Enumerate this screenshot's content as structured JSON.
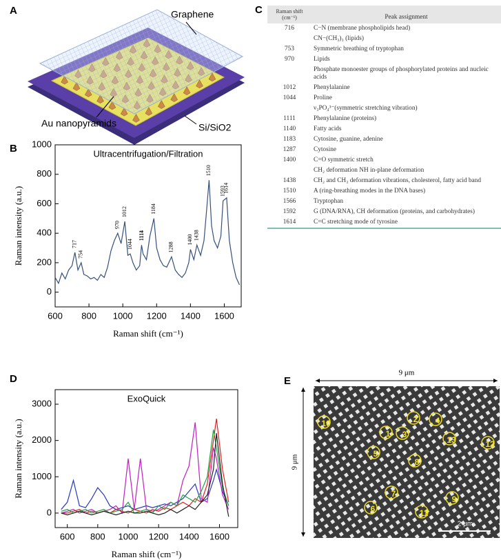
{
  "panel_a": {
    "label": "A",
    "graphene": "Graphene",
    "nanopyramids": "Au nanopyramids",
    "substrate": "Si/SiO2"
  },
  "chart_data": [
    {
      "type": "line",
      "label": "B",
      "title": "Ultracentrifugation/Filtration",
      "xlabel": "Raman shift (cm⁻¹)",
      "ylabel": "Raman intensity (a.u.)",
      "x": [
        600,
        620,
        640,
        660,
        680,
        700,
        717,
        735,
        754,
        770,
        790,
        810,
        830,
        850,
        870,
        890,
        910,
        930,
        950,
        970,
        990,
        1012,
        1030,
        1044,
        1060,
        1080,
        1100,
        1111,
        1120,
        1140,
        1160,
        1184,
        1200,
        1220,
        1240,
        1260,
        1288,
        1310,
        1330,
        1350,
        1370,
        1390,
        1400,
        1420,
        1438,
        1460,
        1480,
        1495,
        1510,
        1525,
        1540,
        1560,
        1580,
        1593,
        1614,
        1630,
        1650,
        1670,
        1690
      ],
      "series": [
        {
          "color": "#34507a",
          "values": [
            100,
            60,
            130,
            90,
            150,
            180,
            270,
            150,
            200,
            120,
            110,
            90,
            100,
            80,
            120,
            100,
            170,
            280,
            350,
            400,
            330,
            480,
            250,
            260,
            200,
            150,
            180,
            320,
            260,
            220,
            380,
            500,
            300,
            220,
            180,
            170,
            240,
            150,
            120,
            100,
            130,
            200,
            290,
            220,
            320,
            250,
            350,
            550,
            760,
            450,
            350,
            300,
            380,
            620,
            640,
            350,
            200,
            100,
            50
          ]
        }
      ],
      "xlim": [
        600,
        1700
      ],
      "ylim": [
        -100,
        1000
      ],
      "xticks": [
        600,
        800,
        1000,
        1200,
        1400,
        1600
      ],
      "yticks": [
        0,
        200,
        400,
        600,
        800,
        1000
      ],
      "peak_labels": [
        717,
        754,
        970,
        1012,
        1044,
        1111,
        1114,
        1184,
        1288,
        1400,
        1438,
        1510,
        1593,
        1614
      ]
    },
    {
      "type": "line",
      "label": "D",
      "title": "ExoQuick",
      "xlabel": "Raman shift (cm⁻¹)",
      "ylabel": "Raman intensity (a.u.)",
      "x": [
        560,
        600,
        640,
        680,
        720,
        760,
        800,
        840,
        880,
        920,
        960,
        1000,
        1040,
        1080,
        1120,
        1160,
        1200,
        1240,
        1280,
        1320,
        1360,
        1400,
        1440,
        1480,
        1520,
        1560,
        1580,
        1620,
        1660
      ],
      "series": [
        {
          "color": "#2438c0",
          "values": [
            100,
            300,
            900,
            200,
            150,
            400,
            700,
            500,
            200,
            100,
            150,
            200,
            100,
            150,
            200,
            150,
            200,
            250,
            200,
            300,
            400,
            600,
            800,
            300,
            400,
            900,
            1200,
            600,
            200
          ]
        },
        {
          "color": "#c020c0",
          "values": [
            0,
            50,
            100,
            0,
            50,
            100,
            0,
            50,
            100,
            200,
            0,
            1500,
            100,
            1500,
            100,
            50,
            100,
            200,
            300,
            200,
            900,
            1300,
            2500,
            400,
            300,
            1800,
            1500,
            500,
            100
          ]
        },
        {
          "color": "#e02020",
          "values": [
            0,
            0,
            50,
            100,
            0,
            50,
            0,
            50,
            0,
            100,
            50,
            0,
            100,
            50,
            0,
            100,
            50,
            150,
            100,
            200,
            300,
            200,
            400,
            300,
            800,
            2000,
            2600,
            1200,
            300
          ]
        },
        {
          "color": "#20a040",
          "values": [
            50,
            100,
            0,
            50,
            100,
            0,
            50,
            100,
            0,
            50,
            100,
            300,
            0,
            50,
            100,
            0,
            200,
            100,
            300,
            200,
            500,
            400,
            300,
            600,
            1000,
            2300,
            1800,
            700,
            200
          ]
        },
        {
          "color": "#202020",
          "values": [
            0,
            -50,
            0,
            50,
            0,
            -50,
            0,
            50,
            0,
            -50,
            0,
            50,
            0,
            0,
            50,
            0,
            -50,
            0,
            100,
            0,
            100,
            200,
            100,
            300,
            500,
            1200,
            2200,
            800,
            -100
          ]
        }
      ],
      "xlim": [
        520,
        1720
      ],
      "ylim": [
        -400,
        3400
      ],
      "xticks": [
        600,
        800,
        1000,
        1200,
        1400,
        1600
      ],
      "yticks": [
        0,
        1000,
        2000,
        3000
      ]
    }
  ],
  "table": {
    "label": "C",
    "header": [
      "Raman shift (cm⁻¹)",
      "Peak assignment"
    ],
    "rows": [
      {
        "shift": 716,
        "assignment": "C−N (membrane phospholipids head)"
      },
      {
        "assignment": "CN−(CH₃)₃ (lipids)"
      },
      {
        "shift": 753,
        "assignment": "Symmetric breathing of tryptophan"
      },
      {
        "shift": 970,
        "assignment": "Lipids"
      },
      {
        "assignment": "Phosphate monoester groups of phosphorylated proteins and nucleic acids"
      },
      {
        "shift": 1012,
        "assignment": "Phenylalanine"
      },
      {
        "shift": 1044,
        "assignment": "Proline"
      },
      {
        "assignment": "ν₃PO₄³⁻(symmetric stretching vibration)"
      },
      {
        "shift": 1111,
        "assignment": "Phenylalanine (proteins)"
      },
      {
        "shift": 1140,
        "assignment": "Fatty acids"
      },
      {
        "shift": 1183,
        "assignment": "Cytosine, guanine, adenine"
      },
      {
        "shift": 1287,
        "assignment": "Cytosine"
      },
      {
        "shift": 1400,
        "assignment": "C=O symmetric stretch"
      },
      {
        "assignment": "CH₂ deformation NH in-plane deformation"
      },
      {
        "shift": 1438,
        "assignment": "CH₂ and CH₃ deformation vibrations, cholesterol, fatty acid band"
      },
      {
        "shift": 1510,
        "assignment": "A (ring-breathing modes in the DNA bases)"
      },
      {
        "shift": 1566,
        "assignment": "Tryptophan"
      },
      {
        "shift": 1592,
        "assignment": "G (DNA/RNA), CH deformation (proteins, and carbohydrates)"
      },
      {
        "shift": 1614,
        "assignment": "C=C stretching mode of tyrosine"
      }
    ]
  },
  "panel_e": {
    "label": "E",
    "width": "9 μm",
    "height": "9 μm",
    "scale": "2 μm",
    "spots": [
      10,
      1,
      2,
      3,
      4,
      13,
      12,
      5,
      8,
      7,
      9,
      6,
      11
    ]
  }
}
